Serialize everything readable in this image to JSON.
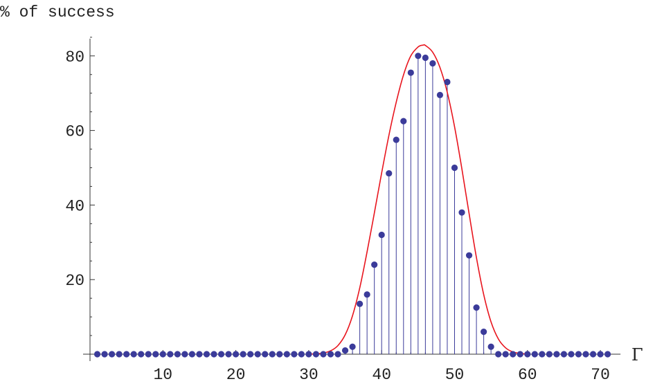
{
  "chart_data": {
    "type": "scatter",
    "ylabel": "% of success",
    "xlabel": "Γ",
    "xlim": [
      0,
      72
    ],
    "ylim": [
      0,
      85
    ],
    "x_ticks": [
      10,
      20,
      30,
      40,
      50,
      60,
      70
    ],
    "y_ticks": [
      20,
      40,
      60,
      80
    ],
    "grid": false,
    "colors": {
      "points": "#3b3b9a",
      "stems": "#3b3b9a",
      "fit": "#e8141d",
      "axis": "#333333"
    },
    "series": [
      {
        "style": "stem-points",
        "x": [
          1,
          2,
          3,
          4,
          5,
          6,
          7,
          8,
          9,
          10,
          11,
          12,
          13,
          14,
          15,
          16,
          17,
          18,
          19,
          20,
          21,
          22,
          23,
          24,
          25,
          26,
          27,
          28,
          29,
          30,
          31,
          32,
          33,
          34,
          35,
          36,
          37,
          38,
          39,
          40,
          41,
          42,
          43,
          44,
          45,
          46,
          47,
          48,
          49,
          50,
          51,
          52,
          53,
          54,
          55,
          56,
          57,
          58,
          59,
          60,
          61,
          62,
          63,
          64,
          65,
          66,
          67,
          68,
          69,
          70,
          71
        ],
        "y": [
          0,
          0,
          0,
          0,
          0,
          0,
          0,
          0,
          0,
          0,
          0,
          0,
          0,
          0,
          0,
          0,
          0,
          0,
          0,
          0,
          0,
          0,
          0,
          0,
          0,
          0,
          0,
          0,
          0,
          0,
          0,
          0,
          0,
          0,
          1,
          2,
          13.5,
          16,
          24,
          32,
          48.5,
          57.5,
          62.5,
          75.5,
          80,
          79.5,
          78,
          69.5,
          73,
          50,
          38,
          26.5,
          12.5,
          6,
          2,
          0,
          0,
          0,
          0,
          0,
          0,
          0,
          0,
          0,
          0,
          0,
          0,
          0,
          0,
          0,
          0
        ]
      },
      {
        "style": "fit-curve",
        "x": [
          30,
          31,
          32,
          33,
          34,
          35,
          36,
          37,
          38,
          39,
          40,
          41,
          42,
          43,
          44,
          45,
          45.7,
          46,
          47,
          48,
          49,
          50,
          51,
          52,
          53,
          54,
          55,
          56,
          57,
          58,
          59,
          60
        ],
        "y": [
          0.02,
          0.08,
          0.3,
          0.9,
          2.3,
          5.2,
          10.3,
          17.8,
          27.4,
          37.9,
          48.6,
          58.7,
          67.6,
          74.9,
          80.0,
          82.4,
          82.9,
          82.8,
          81.0,
          76.9,
          70.2,
          61.0,
          49.8,
          37.6,
          25.9,
          16.0,
          8.7,
          4.1,
          1.7,
          0.6,
          0.2,
          0.05
        ]
      }
    ]
  }
}
